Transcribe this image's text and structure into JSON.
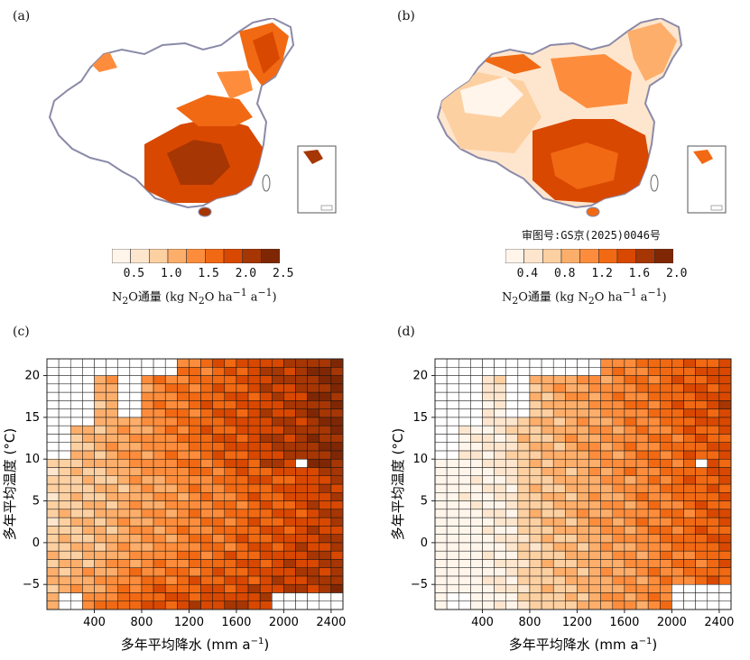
{
  "panels": {
    "a": "(a)",
    "b": "(b)",
    "c": "(c)",
    "d": "(d)"
  },
  "approval_number": "审图号:GS京(2025)0046号",
  "colorbars": [
    {
      "ticks": [
        "0.5",
        "1.0",
        "1.5",
        "2.0",
        "2.5"
      ],
      "label_main": "N",
      "label_sub1": "2",
      "label_mid": "O通量 (kg N",
      "label_sub2": "2",
      "label_tail": "O ha",
      "label_sup1": "−1",
      "label_end": " a",
      "label_sup2": "−1",
      "label_close": ")"
    },
    {
      "ticks": [
        "0.4",
        "0.8",
        "1.2",
        "1.6",
        "2.0"
      ],
      "label_main": "N",
      "label_sub1": "2",
      "label_mid": "O通量 (kg N",
      "label_sub2": "2",
      "label_tail": "O ha",
      "label_sup1": "−1",
      "label_end": " a",
      "label_sup2": "−1",
      "label_close": ")"
    }
  ],
  "palette": [
    "#fff5eb",
    "#fee6ce",
    "#fdd0a2",
    "#fdae6b",
    "#fd8d3c",
    "#f16913",
    "#d94801",
    "#a63603",
    "#7f2704"
  ],
  "chart_data": [
    {
      "type": "heatmap",
      "panel": "(c)",
      "xlabel": "多年平均降水 (mm a",
      "xlabel_sup": "−1",
      "xlabel_close": ")",
      "ylabel": "多年平均温度 (°C)",
      "xlim": [
        0,
        2500
      ],
      "ylim": [
        -8,
        22
      ],
      "xticks": [
        400,
        800,
        1200,
        1600,
        2000,
        2400
      ],
      "yticks": [
        -5,
        0,
        5,
        10,
        15,
        20
      ],
      "value_range": [
        0.5,
        3.0
      ]
    },
    {
      "type": "heatmap",
      "panel": "(d)",
      "xlabel": "多年平均降水 (mm a",
      "xlabel_sup": "−1",
      "xlabel_close": ")",
      "ylabel": "多年平均温度 (°C)",
      "xlim": [
        0,
        2500
      ],
      "ylim": [
        -8,
        22
      ],
      "xticks": [
        400,
        800,
        1200,
        1600,
        2000,
        2400
      ],
      "yticks": [
        -5,
        0,
        5,
        10,
        15,
        20
      ],
      "value_range": [
        0.4,
        2.2
      ]
    }
  ]
}
